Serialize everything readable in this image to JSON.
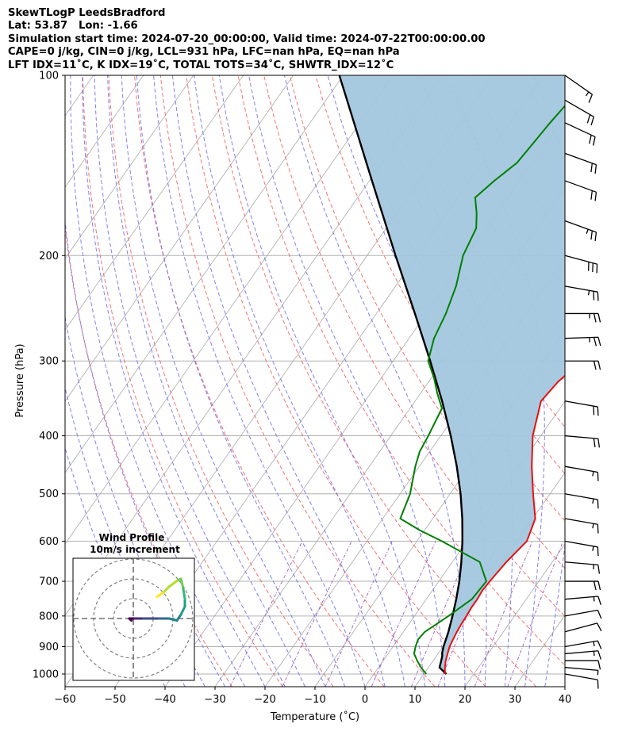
{
  "header": {
    "line1": "SkewTLogP LeedsBradford",
    "line2": "Lat: 53.87   Lon: -1.66",
    "line3": "Simulation start time: 2024-07-20_00:00:00, Valid time: 2024-07-22T00:00:00.00",
    "line4": "CAPE=0 j/kg, CIN=0 j/kg, LCL=931 hPa, LFC=nan hPa, EQ=nan hPa",
    "line5": "LFT IDX=11˚C, K IDX=19˚C, TOTAL TOTS=34˚C, SHWTR_IDX=12˚C"
  },
  "chart_data": [
    {
      "type": "line",
      "subtype": "skew-T log-p",
      "xlabel": "Temperature (˚C)",
      "ylabel": "Pressure (hPa)",
      "xlim": [
        -60,
        40
      ],
      "ylim": [
        1050,
        100
      ],
      "x_ticks": [
        -60,
        -50,
        -40,
        -30,
        -20,
        -10,
        0,
        10,
        20,
        30,
        40
      ],
      "x_tick_labels": [
        "−60",
        "−50",
        "−40",
        "−30",
        "−20",
        "−10",
        "0",
        "10",
        "20",
        "30",
        "40"
      ],
      "y_ticks": [
        1000,
        900,
        800,
        700,
        600,
        500,
        400,
        300,
        200,
        100
      ],
      "y_scale": "log",
      "grid": true,
      "shaded_area": {
        "between": [
          "temperature",
          "parcel"
        ],
        "color": "#a3c7df"
      },
      "background_lines": {
        "dry_adiabats": "#f06666",
        "moist_adiabats": "#6b6bf0",
        "mixing_ratio": "#9b59b6",
        "isotherms": "#aaaaaa"
      },
      "series": [
        {
          "id": "temperature",
          "color": "#e81010",
          "p": [
            1000,
            975,
            950,
            925,
            900,
            875,
            850,
            825,
            800,
            775,
            750,
            725,
            700,
            650,
            600,
            550,
            500,
            450,
            400,
            350,
            325,
            300,
            275,
            250,
            225,
            200,
            185,
            175,
            165,
            150,
            140,
            130,
            115,
            100
          ],
          "t": [
            14.2,
            13.3,
            12.5,
            11.9,
            11.3,
            11.0,
            10.7,
            10.5,
            10.4,
            10.2,
            10.2,
            10.0,
            10.2,
            10.8,
            12.0,
            10.5,
            6.6,
            2.5,
            -1.6,
            -4.8,
            -4.1,
            -2.3,
            -1.5,
            -0.8,
            1.1,
            4.3,
            6.0,
            6.5,
            6.8,
            8.0,
            8.7,
            10.0,
            11.1,
            12.5
          ]
        },
        {
          "id": "dewpoint",
          "color": "#007f00",
          "p": [
            1000,
            975,
            950,
            925,
            900,
            875,
            850,
            800,
            750,
            700,
            650,
            600,
            575,
            550,
            500,
            450,
            425,
            400,
            360,
            340,
            320,
            300,
            275,
            250,
            225,
            200,
            180,
            170,
            160,
            150,
            140,
            130,
            120,
            110,
            100
          ],
          "t": [
            10.5,
            8.5,
            6.8,
            5.2,
            4.5,
            4.0,
            4.3,
            6.8,
            9.1,
            9.5,
            5.5,
            -5.0,
            -11.0,
            -16.5,
            -18.0,
            -20.8,
            -22.0,
            -22.5,
            -23.6,
            -26.6,
            -29.5,
            -33.0,
            -35.0,
            -36.1,
            -37.9,
            -40.8,
            -42.0,
            -44.0,
            -46.5,
            -45.0,
            -43.0,
            -42.5,
            -42.0,
            -41.2,
            -40.0
          ]
        },
        {
          "id": "parcel",
          "color": "#000000",
          "p": [
            1000,
            975,
            950,
            931,
            925,
            900,
            850,
            800,
            750,
            700,
            650,
            600,
            550,
            500,
            450,
            400,
            350,
            300,
            250,
            200,
            150,
            100
          ],
          "t": [
            14.5,
            12.2,
            11.6,
            11.1,
            10.8,
            10.1,
            9.0,
            7.6,
            6.0,
            4.1,
            1.8,
            -0.9,
            -4.1,
            -7.9,
            -12.5,
            -18.0,
            -24.6,
            -32.6,
            -42.3,
            -54.3,
            -69.5,
            -90.8
          ]
        }
      ],
      "wind_barbs": {
        "color": "#000000",
        "p": [
          1000,
          975,
          950,
          925,
          900,
          850,
          800,
          750,
          700,
          650,
          600,
          550,
          500,
          450,
          400,
          350,
          300,
          275,
          250,
          225,
          200,
          175,
          150,
          135,
          120,
          110,
          100
        ],
        "speed_kt": [
          11,
          9,
          12,
          16,
          15,
          10,
          13,
          18,
          20,
          19,
          18,
          19,
          18,
          19,
          21,
          22,
          24,
          25,
          27,
          28,
          31,
          26,
          24,
          22,
          21,
          20,
          18
        ],
        "direction_deg": [
          280,
          275,
          270,
          265,
          260,
          255,
          260,
          265,
          270,
          275,
          280,
          280,
          280,
          280,
          275,
          280,
          270,
          268,
          270,
          280,
          285,
          290,
          290,
          290,
          295,
          300,
          305
        ]
      }
    },
    {
      "type": "scatter",
      "subtype": "hodograph",
      "title": "Wind Profile",
      "subtitle": "10m/s increment",
      "rings_ms": [
        10,
        20,
        30
      ],
      "colormap": "viridis",
      "u": [
        -1,
        -2,
        1,
        3,
        5,
        8,
        13,
        18,
        22,
        24,
        26,
        26,
        25,
        24,
        22,
        18,
        15,
        12
      ],
      "v": [
        -1,
        0,
        0,
        0,
        0,
        0,
        0,
        0,
        -1,
        2,
        6,
        10,
        16,
        20,
        19,
        16,
        13,
        11
      ]
    }
  ]
}
